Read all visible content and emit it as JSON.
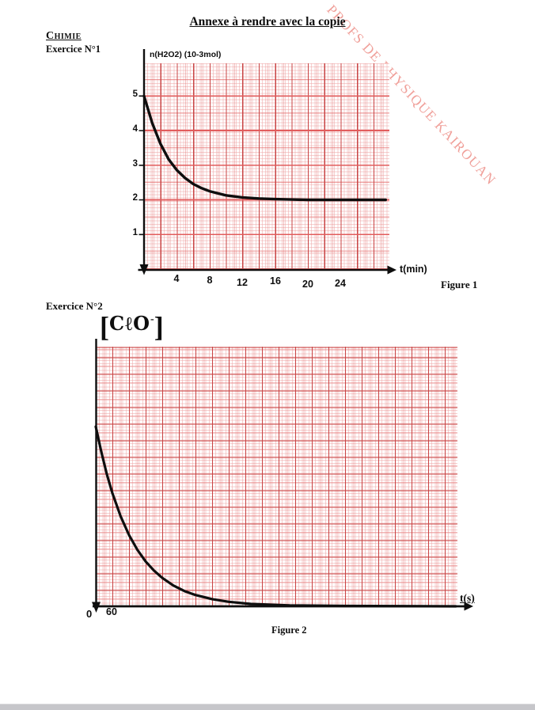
{
  "header": {
    "title": "Annexe à rendre avec la copie",
    "section": "Chimie",
    "exercise1": "Exercice N°1",
    "exercise2": "Exercice N°2"
  },
  "watermark": {
    "text": "PROFS DE PHYSIQUE KAIROUAN",
    "color": "#f0a09a",
    "angle_deg": 47
  },
  "figure1": {
    "caption": "Figure 1",
    "y_axis_label": "n(H2O2) (10-3mol)",
    "x_axis_label": "t(min)",
    "yticks": [
      "5",
      "4",
      "3",
      "2",
      "1"
    ],
    "xticks": [
      "4",
      "8",
      "12",
      "16",
      "20",
      "24"
    ]
  },
  "figure2": {
    "caption": "Figure 2",
    "ylabel_open": "[",
    "ylabel_main": "CℓO",
    "ylabel_sup": "-",
    "ylabel_close": "]",
    "x_axis_label": "t(s)",
    "origin_label": "0",
    "xticks": [
      "60"
    ]
  },
  "colors": {
    "paper_major_line": "#c84444",
    "paper_medium_line": "#e58f8f",
    "paper_fine_line": "#f2c6c6",
    "bright_unit_line": "#e25d5d",
    "curve": "#0e0e0e",
    "watermark": "#f0a09a",
    "footer_bar": "#c6c6ca"
  },
  "chart_data": [
    {
      "type": "line",
      "figure": "Figure 1",
      "xlabel": "t(min)",
      "ylabel": "n(H2O2) (10-3mol)",
      "xlim": [
        0,
        30
      ],
      "ylim": [
        0,
        5.8
      ],
      "xticks": [
        4,
        8,
        12,
        16,
        20,
        24
      ],
      "yticks": [
        1,
        2,
        3,
        4,
        5
      ],
      "grid": true,
      "asymptote_y": 2,
      "points": [
        [
          0,
          5.0
        ],
        [
          1,
          4.22
        ],
        [
          2,
          3.62
        ],
        [
          3,
          3.17
        ],
        [
          4,
          2.86
        ],
        [
          5,
          2.63
        ],
        [
          6,
          2.46
        ],
        [
          7,
          2.34
        ],
        [
          8,
          2.25
        ],
        [
          10,
          2.13
        ],
        [
          12,
          2.07
        ],
        [
          14,
          2.04
        ],
        [
          16,
          2.02
        ],
        [
          18,
          2.01
        ],
        [
          20,
          2.0
        ],
        [
          24,
          2.0
        ],
        [
          29.5,
          2.0
        ]
      ]
    },
    {
      "type": "line",
      "figure": "Figure 2",
      "xlabel": "t(s)",
      "ylabel": "[CℓO-]",
      "xlim": [
        0,
        1310
      ],
      "xticks": [
        60
      ],
      "yticks": [],
      "y_scale": "unlabeled axis; values normalized to initial concentration",
      "grid": true,
      "points": [
        [
          0,
          1.0
        ],
        [
          20,
          0.86
        ],
        [
          40,
          0.735
        ],
        [
          60,
          0.63
        ],
        [
          90,
          0.5
        ],
        [
          120,
          0.397
        ],
        [
          150,
          0.315
        ],
        [
          180,
          0.25
        ],
        [
          210,
          0.199
        ],
        [
          240,
          0.158
        ],
        [
          280,
          0.116
        ],
        [
          320,
          0.085
        ],
        [
          360,
          0.063
        ],
        [
          420,
          0.04
        ],
        [
          480,
          0.025
        ],
        [
          560,
          0.013
        ],
        [
          700,
          0.005
        ],
        [
          900,
          0.002
        ],
        [
          1300,
          0.0
        ]
      ]
    }
  ]
}
